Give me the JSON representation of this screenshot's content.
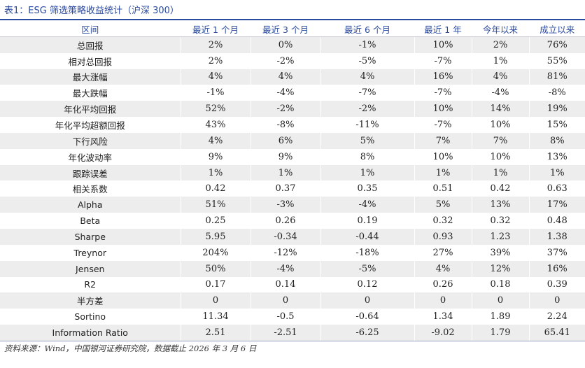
{
  "caption": "表1：ESG 筛选策略收益统计（沪深 300）",
  "table": {
    "headers": [
      "区间",
      "最近 1 个月",
      "最近 3 个月",
      "最近 6 个月",
      "最近 1 年",
      "今年以来",
      "成立以来"
    ],
    "rows": [
      [
        "总回报",
        "2%",
        "0%",
        "-1%",
        "10%",
        "2%",
        "76%"
      ],
      [
        "相对总回报",
        "2%",
        "-2%",
        "-5%",
        "-7%",
        "1%",
        "55%"
      ],
      [
        "最大涨幅",
        "4%",
        "4%",
        "4%",
        "16%",
        "4%",
        "81%"
      ],
      [
        "最大跌幅",
        "-1%",
        "-4%",
        "-7%",
        "-7%",
        "-4%",
        "-8%"
      ],
      [
        "年化平均回报",
        "52%",
        "-2%",
        "-2%",
        "10%",
        "14%",
        "19%"
      ],
      [
        "年化平均超额回报",
        "43%",
        "-8%",
        "-11%",
        "-7%",
        "10%",
        "15%"
      ],
      [
        "下行风险",
        "4%",
        "6%",
        "5%",
        "7%",
        "7%",
        "8%"
      ],
      [
        "年化波动率",
        "9%",
        "9%",
        "8%",
        "10%",
        "10%",
        "13%"
      ],
      [
        "跟踪误差",
        "1%",
        "1%",
        "1%",
        "1%",
        "1%",
        "1%"
      ],
      [
        "相关系数",
        "0.42",
        "0.37",
        "0.35",
        "0.51",
        "0.42",
        "0.63"
      ],
      [
        "Alpha",
        "51%",
        "-3%",
        "-4%",
        "5%",
        "13%",
        "17%"
      ],
      [
        "Beta",
        "0.25",
        "0.26",
        "0.19",
        "0.32",
        "0.32",
        "0.48"
      ],
      [
        "Sharpe",
        "5.95",
        "-0.34",
        "-0.44",
        "0.93",
        "1.23",
        "1.38"
      ],
      [
        "Treynor",
        "204%",
        "-12%",
        "-18%",
        "27%",
        "39%",
        "37%"
      ],
      [
        "Jensen",
        "50%",
        "-4%",
        "-5%",
        "4%",
        "12%",
        "16%"
      ],
      [
        "R2",
        "0.17",
        "0.14",
        "0.12",
        "0.26",
        "0.18",
        "0.39"
      ],
      [
        "半方差",
        "0",
        "0",
        "0",
        "0",
        "0",
        "0"
      ],
      [
        "Sortino",
        "11.34",
        "-0.5",
        "-0.64",
        "1.34",
        "1.89",
        "2.24"
      ],
      [
        "Information Ratio",
        "2.51",
        "-2.51",
        "-6.25",
        "-9.02",
        "1.79",
        "65.41"
      ]
    ]
  },
  "source": "资料来源：Wind，中国银河证券研究院，数据截止 2026 年 3 月 6 日",
  "colors": {
    "accent": "#2b4a9e",
    "stripe": "#ededed"
  }
}
